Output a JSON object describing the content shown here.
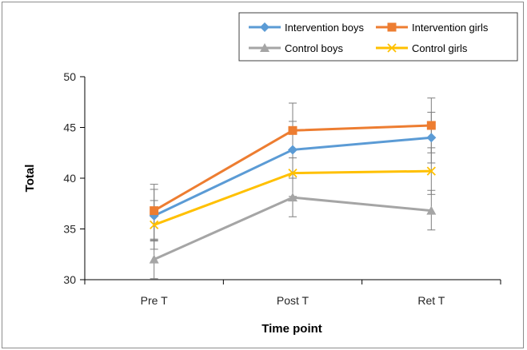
{
  "chart_data": {
    "type": "line",
    "categories": [
      "Pre T",
      "Post T",
      "Ret T"
    ],
    "xlabel": "Time point",
    "ylabel": "Total",
    "ylim": [
      30,
      50
    ],
    "yticks": [
      30,
      35,
      40,
      45,
      50
    ],
    "grid": false,
    "legend_position": "top-right",
    "series": [
      {
        "name": "Intervention boys",
        "color": "#5b9bd5",
        "marker": "diamond",
        "values": [
          36.3,
          42.8,
          44.0
        ],
        "err_upper": [
          38.9,
          45.6,
          46.5
        ],
        "err_lower": [
          33.8,
          40.0,
          41.5
        ]
      },
      {
        "name": "Intervention girls",
        "color": "#ed7d31",
        "marker": "square",
        "values": [
          36.8,
          44.7,
          45.2
        ],
        "err_upper": [
          39.4,
          47.4,
          47.9
        ],
        "err_lower": [
          34.0,
          42.0,
          42.5
        ]
      },
      {
        "name": "Control boys",
        "color": "#a5a5a5",
        "marker": "triangle",
        "values": [
          32.0,
          38.1,
          36.8
        ],
        "err_upper": [
          33.9,
          40.0,
          38.8
        ],
        "err_lower": [
          30.1,
          36.2,
          34.9
        ]
      },
      {
        "name": "Control girls",
        "color": "#ffc000",
        "marker": "x",
        "values": [
          35.4,
          40.5,
          40.7
        ],
        "err_upper": [
          37.8,
          42.8,
          43.0
        ],
        "err_lower": [
          33.0,
          38.2,
          38.4
        ]
      }
    ]
  }
}
